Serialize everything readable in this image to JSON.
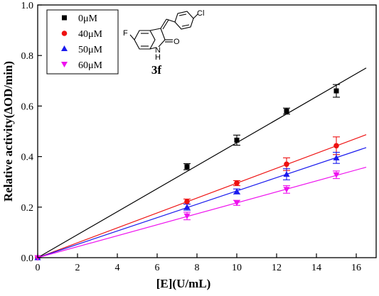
{
  "chart_data": {
    "type": "scatter",
    "xlabel": "[E](U/mL)",
    "ylabel": "Relative activity(ΔOD/min)",
    "xlim": [
      0,
      17
    ],
    "ylim": [
      0,
      1.0
    ],
    "x_ticks": [
      0,
      2,
      4,
      6,
      8,
      10,
      12,
      14,
      16
    ],
    "y_ticks": [
      0.0,
      0.2,
      0.4,
      0.6,
      0.8,
      1.0
    ],
    "x_tick_labels": [
      "0",
      "2",
      "4",
      "6",
      "8",
      "10",
      "12",
      "14",
      "16"
    ],
    "y_tick_labels": [
      "0.0",
      "0.2",
      "0.4",
      "0.6",
      "0.8",
      "1.0"
    ],
    "legend_position": "top-left",
    "x": [
      0,
      7.5,
      10,
      12.5,
      15
    ],
    "series": [
      {
        "name": "0μM",
        "marker": "square",
        "color": "#000000",
        "values": [
          0.0,
          0.36,
          0.465,
          0.58,
          0.66
        ],
        "errors": [
          0,
          0.012,
          0.02,
          0.012,
          0.025
        ],
        "fit_slope": 0.0455
      },
      {
        "name": "40μM",
        "marker": "circle",
        "color": "#ee1111",
        "values": [
          0.0,
          0.222,
          0.295,
          0.37,
          0.443
        ],
        "errors": [
          0,
          0.01,
          0.01,
          0.025,
          0.035
        ],
        "fit_slope": 0.0295
      },
      {
        "name": "50μM",
        "marker": "triangle-up",
        "color": "#1a1aee",
        "values": [
          0.0,
          0.2,
          0.262,
          0.33,
          0.395
        ],
        "errors": [
          0,
          0.012,
          0.01,
          0.022,
          0.022
        ],
        "fit_slope": 0.0264
      },
      {
        "name": "60μM",
        "marker": "triangle-down",
        "color": "#ee11ee",
        "values": [
          0.0,
          0.165,
          0.217,
          0.27,
          0.328
        ],
        "errors": [
          0,
          0.015,
          0.01,
          0.015,
          0.015
        ],
        "fit_slope": 0.0217
      }
    ],
    "compound": {
      "label": "3f",
      "atoms": {
        "fluorine": "F",
        "chlorine": "Cl",
        "oxygen": "O",
        "nitrogen": "N",
        "hydrogen": "H"
      }
    }
  }
}
